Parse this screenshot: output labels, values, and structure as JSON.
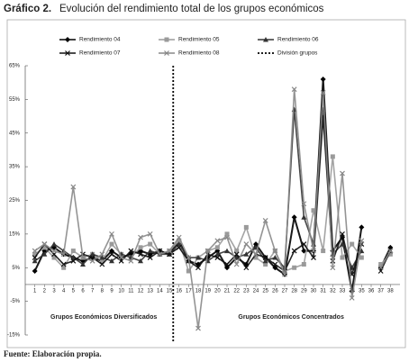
{
  "chart_data": {
    "type": "line",
    "title_label": "Gráfico 2.",
    "title": "Evolución del rendimiento total de los grupos económicos",
    "source": "Fuente: Elaboración propia.",
    "annotations": [
      "Grupos Económicos Diversificados",
      "Grupos Económicos Concentrados"
    ],
    "x": [
      1,
      2,
      3,
      4,
      5,
      6,
      7,
      8,
      9,
      10,
      11,
      12,
      13,
      14,
      15,
      16,
      17,
      18,
      19,
      20,
      21,
      22,
      23,
      24,
      25,
      26,
      27,
      28,
      29,
      30,
      31,
      32,
      33,
      34,
      35,
      36,
      37,
      38
    ],
    "xlim": [
      0,
      39
    ],
    "xticks": [
      1,
      2,
      3,
      4,
      5,
      6,
      7,
      8,
      9,
      10,
      11,
      12,
      13,
      14,
      15,
      16,
      17,
      18,
      19,
      20,
      21,
      22,
      23,
      24,
      25,
      26,
      27,
      28,
      29,
      30,
      31,
      32,
      33,
      34,
      35,
      36,
      37,
      38
    ],
    "ylim": [
      -15,
      65
    ],
    "yticks": [
      {
        "value": -15,
        "label": "-15%"
      },
      {
        "value": -5,
        "label": "-5%"
      },
      {
        "value": 5,
        "label": "5%"
      },
      {
        "value": 15,
        "label": "15%"
      },
      {
        "value": 25,
        "label": "25%"
      },
      {
        "value": 35,
        "label": "35%"
      },
      {
        "value": 45,
        "label": "45%"
      },
      {
        "value": 55,
        "label": "55%"
      },
      {
        "value": 65,
        "label": "65%"
      }
    ],
    "series": [
      {
        "name": "Rendimiento 04",
        "color": "#000000",
        "marker": "diamond",
        "values": [
          4,
          10,
          11,
          9,
          8,
          7,
          8,
          7,
          10,
          8,
          9,
          10,
          9,
          10,
          9,
          13,
          7,
          6,
          8,
          10,
          5,
          8,
          6,
          12,
          8,
          5,
          3,
          20,
          10,
          10,
          61,
          10,
          14,
          -2,
          17,
          null,
          5,
          11
        ]
      },
      {
        "name": "Rendimiento 05",
        "color": "#9a9a9a",
        "marker": "square",
        "values": [
          9,
          11,
          8,
          5,
          10,
          8,
          9,
          7,
          12,
          9,
          8,
          11,
          12,
          9,
          10,
          13,
          4,
          8,
          10,
          11,
          15,
          10,
          17,
          8,
          6,
          10,
          4,
          5,
          6,
          22,
          10,
          38,
          8,
          12,
          8,
          null,
          6,
          9
        ]
      },
      {
        "name": "Rendimiento 06",
        "color": "#333333",
        "marker": "triangle",
        "values": [
          7,
          9,
          12,
          10,
          8,
          6,
          9,
          8,
          7,
          9,
          8,
          7,
          10,
          9,
          9,
          12,
          8,
          8,
          7,
          9,
          10,
          8,
          9,
          11,
          7,
          8,
          5,
          52,
          20,
          12,
          52,
          9,
          12,
          5,
          10,
          null,
          null,
          10
        ]
      },
      {
        "name": "Rendimiento 07",
        "color": "#111111",
        "marker": "x",
        "values": [
          8,
          12,
          9,
          6,
          7,
          9,
          8,
          6,
          9,
          7,
          10,
          9,
          8,
          10,
          9,
          11,
          7,
          5,
          9,
          8,
          6,
          9,
          5,
          9,
          8,
          6,
          4,
          10,
          12,
          8,
          50,
          7,
          15,
          3,
          12,
          null,
          4,
          10
        ]
      },
      {
        "name": "Rendimiento 08",
        "color": "#888888",
        "marker": "x",
        "values": [
          10,
          12,
          10,
          9,
          29,
          8,
          7,
          9,
          15,
          8,
          7,
          14,
          15,
          9,
          10,
          14,
          8,
          -13,
          10,
          13,
          14,
          6,
          12,
          9,
          19,
          10,
          3,
          58,
          24,
          10,
          57,
          5,
          33,
          -4,
          13,
          null,
          5,
          10
        ]
      }
    ],
    "divider": {
      "name": "División grupos",
      "color": "#000000",
      "x": 15.4
    }
  }
}
